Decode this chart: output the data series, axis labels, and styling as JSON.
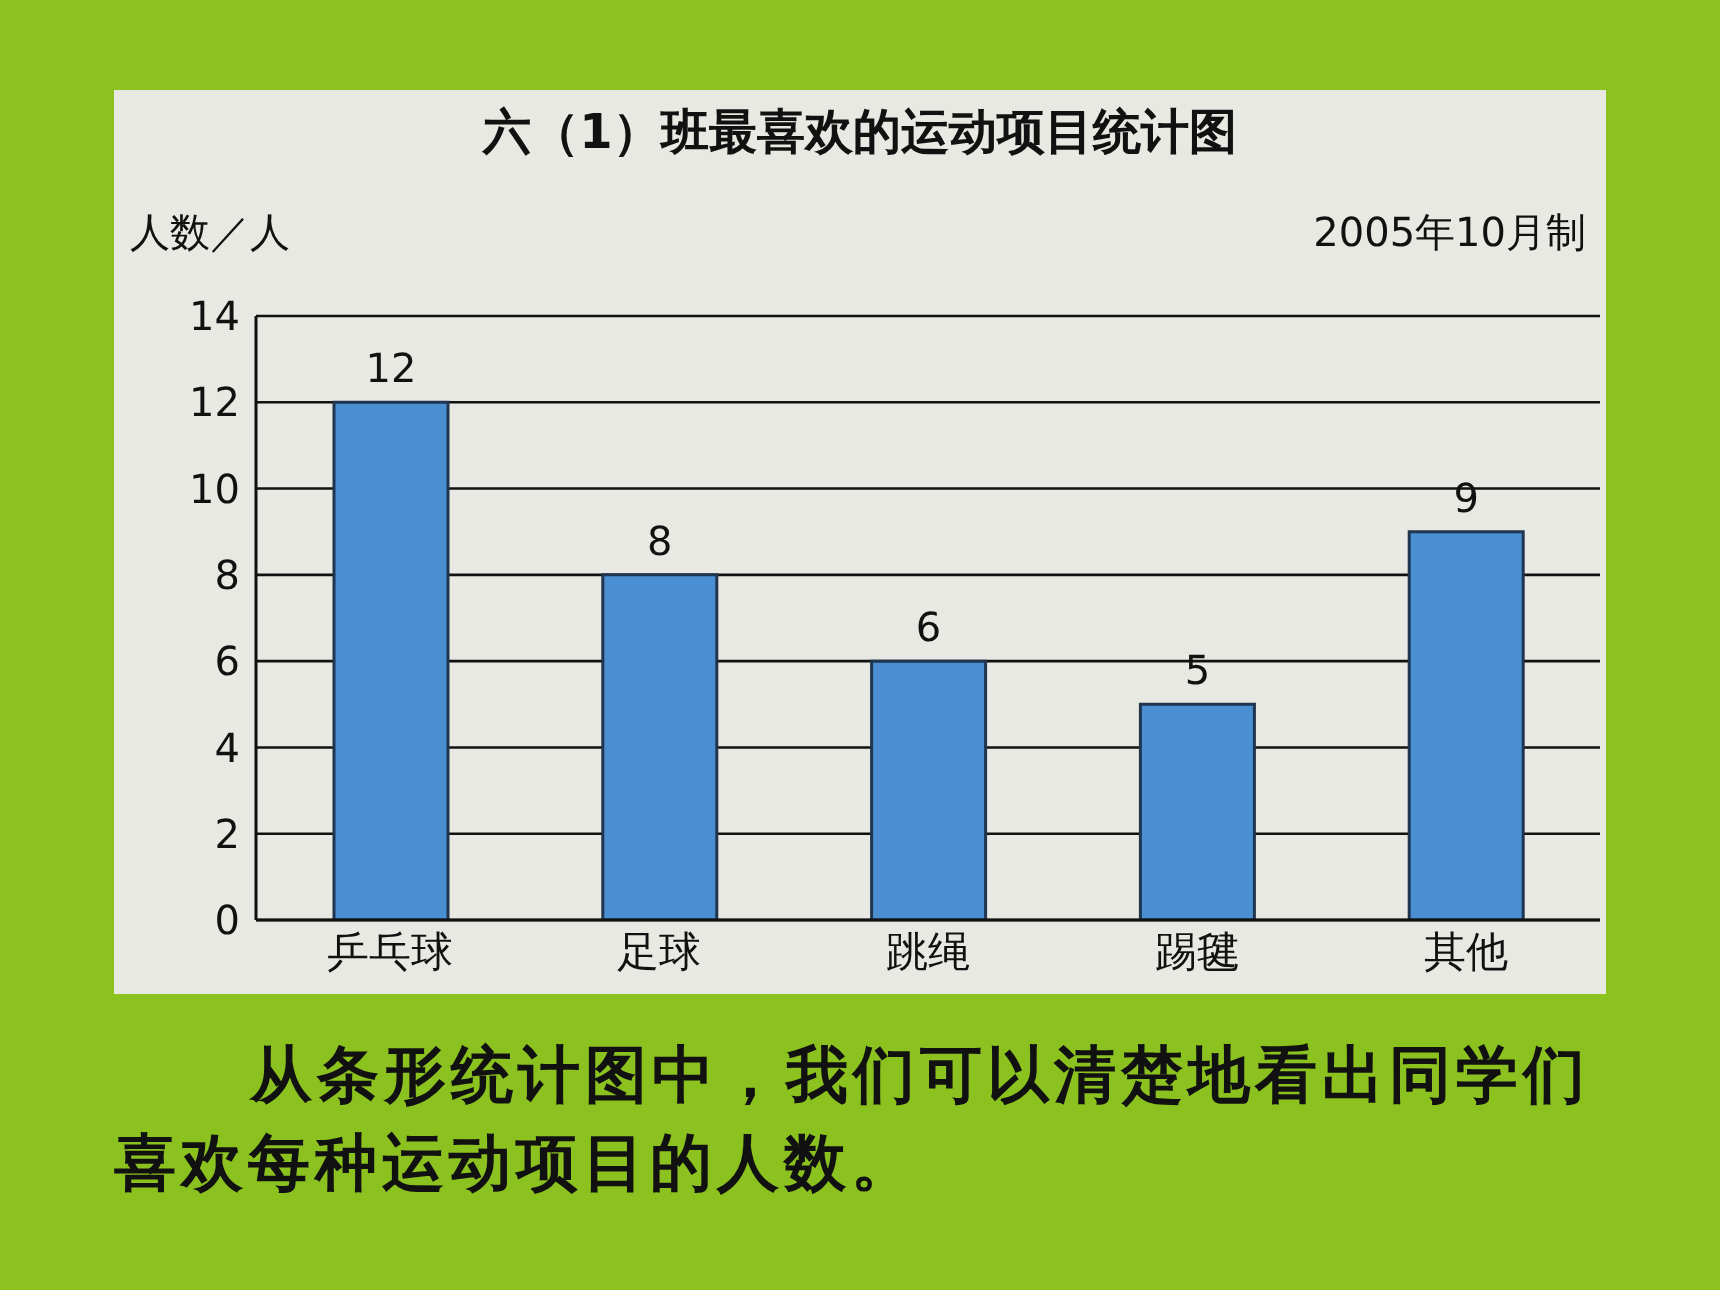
{
  "chart_data": {
    "type": "bar",
    "title": "六（1）班最喜欢的运动项目统计图",
    "ylabel": "人数／人",
    "annotations": [
      "2005年10月制",
      "从条形统计图中，我们可以清楚地看出同学们喜欢每种运动项目的人数。"
    ],
    "categories": [
      "乒乓球",
      "足球",
      "跳绳",
      "踢毽",
      "其他"
    ],
    "values": [
      12,
      8,
      6,
      5,
      9
    ],
    "color": "#4a8fd2",
    "ylim": [
      0,
      14
    ],
    "yticks": [
      0,
      2,
      4,
      6,
      8,
      10,
      12,
      14
    ],
    "grid": "y",
    "data_labels": true
  }
}
